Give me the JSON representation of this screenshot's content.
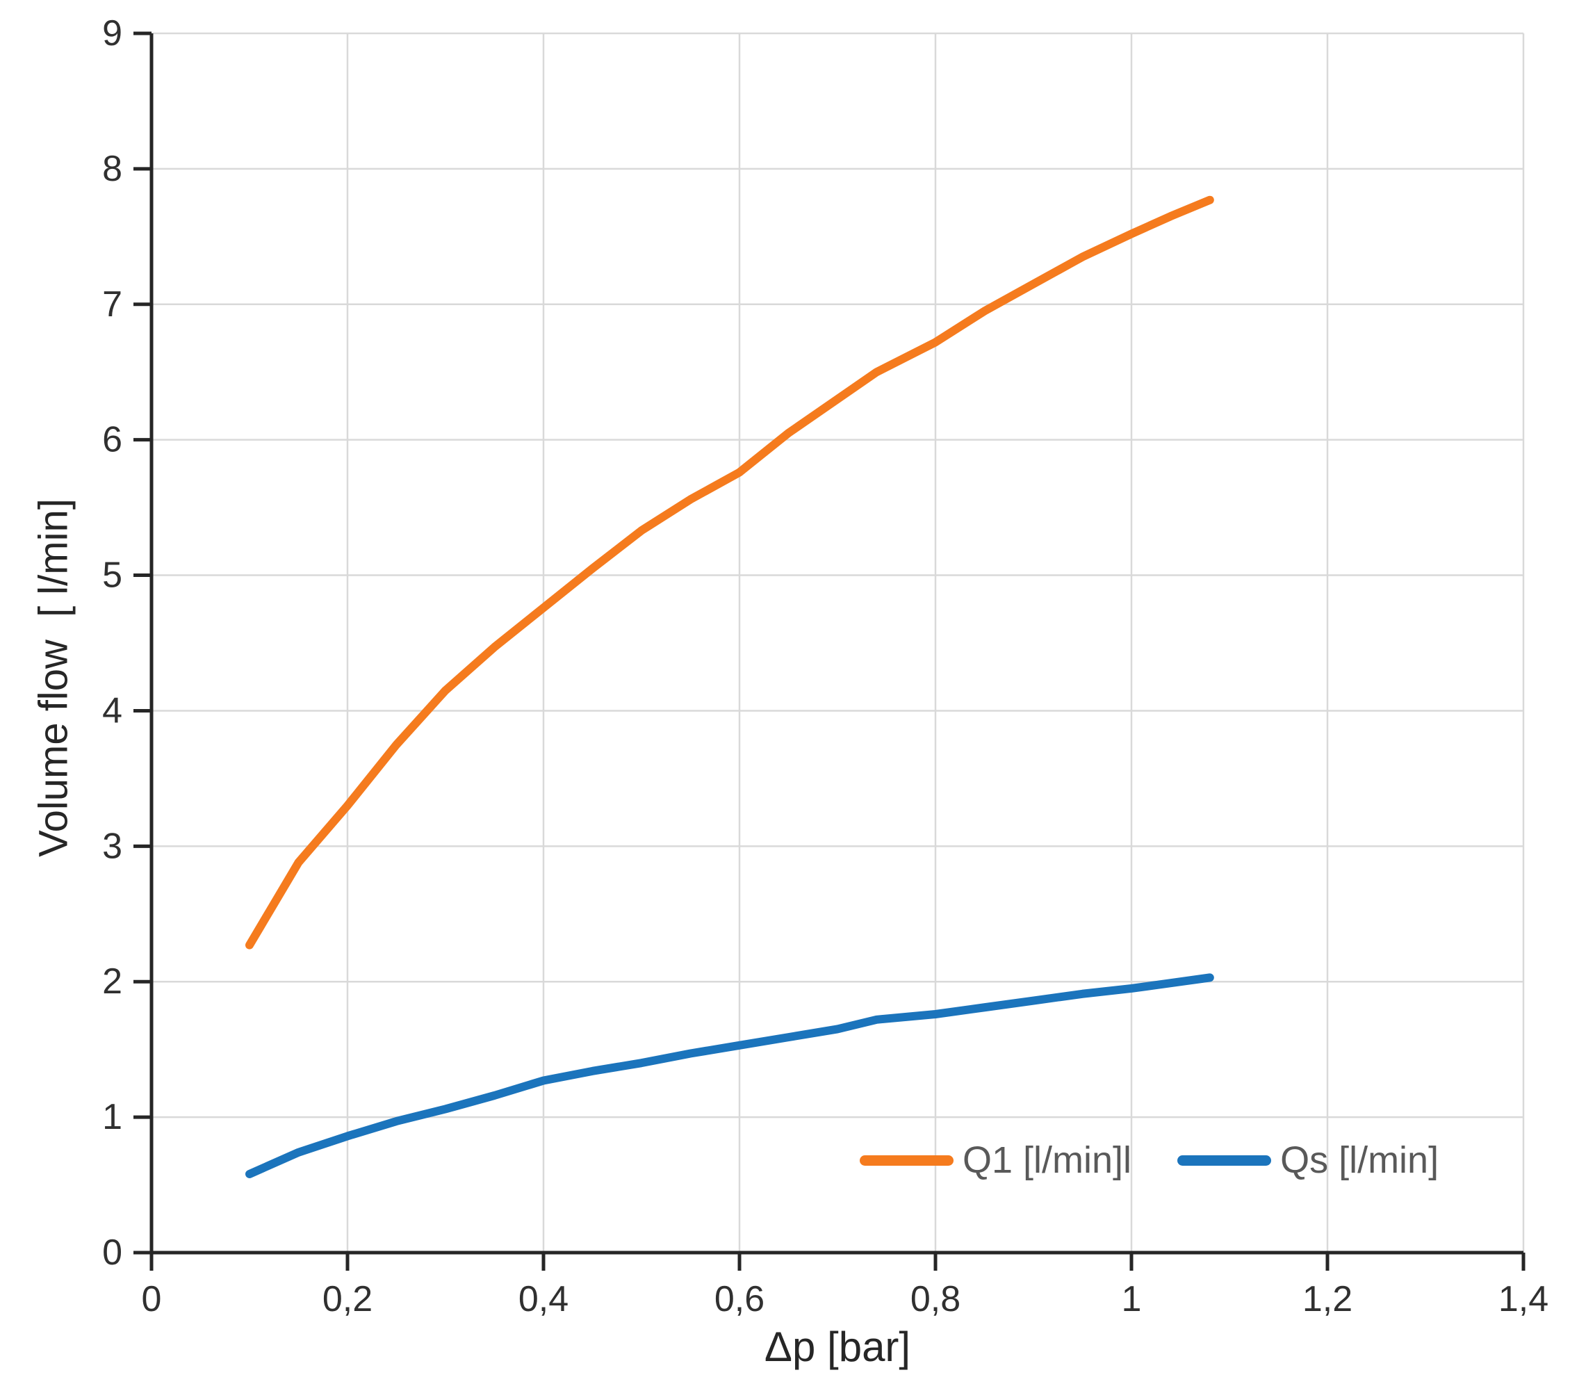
{
  "chart_data": {
    "type": "line",
    "title": "",
    "xlabel": "Δp [bar]",
    "ylabel": "Volume flow  [ l/min]",
    "xlim": [
      0,
      1.4
    ],
    "ylim": [
      0,
      9
    ],
    "grid": true,
    "legend_position": "inside-bottom-right",
    "xticks": {
      "values": [
        0,
        0.2,
        0.4,
        0.6,
        0.8,
        1,
        1.2,
        1.4
      ],
      "labels": [
        "0",
        "0,2",
        "0,4",
        "0,6",
        "0,8",
        "1",
        "1,2",
        "1,4"
      ]
    },
    "yticks": {
      "values": [
        0,
        1,
        2,
        3,
        4,
        5,
        6,
        7,
        8,
        9
      ],
      "labels": [
        "0",
        "1",
        "2",
        "3",
        "4",
        "5",
        "6",
        "7",
        "8",
        "9"
      ]
    },
    "series": [
      {
        "name": "Q1 [l/min]l",
        "color": "#F57B1E",
        "x": [
          0.1,
          0.15,
          0.2,
          0.25,
          0.3,
          0.35,
          0.4,
          0.45,
          0.5,
          0.55,
          0.6,
          0.65,
          0.7,
          0.74,
          0.8,
          0.85,
          0.9,
          0.95,
          1.0,
          1.04,
          1.08
        ],
        "y": [
          2.27,
          2.88,
          3.3,
          3.75,
          4.15,
          4.47,
          4.76,
          5.05,
          5.33,
          5.56,
          5.76,
          6.05,
          6.3,
          6.5,
          6.72,
          6.95,
          7.15,
          7.35,
          7.52,
          7.65,
          7.77
        ]
      },
      {
        "name": "Qs [l/min]",
        "color": "#1B74BC",
        "x": [
          0.1,
          0.15,
          0.2,
          0.25,
          0.3,
          0.35,
          0.4,
          0.45,
          0.5,
          0.55,
          0.6,
          0.65,
          0.7,
          0.74,
          0.8,
          0.85,
          0.9,
          0.95,
          1.0,
          1.04,
          1.08
        ],
        "y": [
          0.58,
          0.74,
          0.86,
          0.97,
          1.06,
          1.16,
          1.27,
          1.34,
          1.4,
          1.47,
          1.53,
          1.59,
          1.65,
          1.72,
          1.76,
          1.81,
          1.86,
          1.91,
          1.95,
          1.99,
          2.03
        ]
      }
    ]
  },
  "legend": {
    "items": [
      {
        "label": "Q1 [l/min]l",
        "color": "#F57B1E"
      },
      {
        "label": "Qs [l/min]",
        "color": "#1B74BC"
      }
    ]
  },
  "style": {
    "background": "#FFFFFF",
    "grid_color": "#D9D9D9",
    "axis_color": "#262626",
    "tick_label_color": "#303030",
    "legend_text_color": "#595959"
  }
}
